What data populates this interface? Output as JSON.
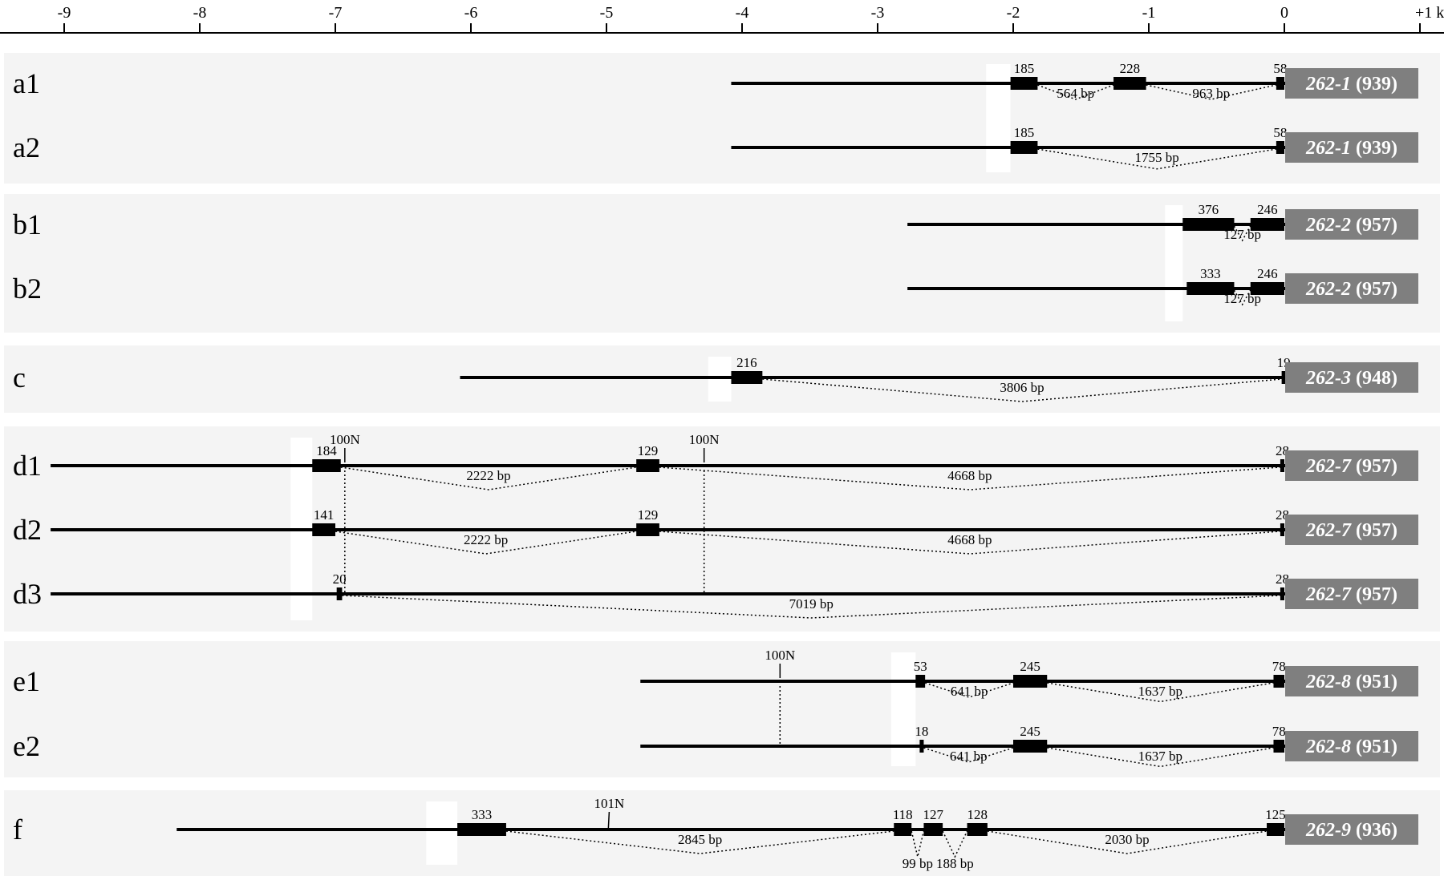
{
  "axis": {
    "ticks": [
      {
        "value": -9,
        "label": "-9"
      },
      {
        "value": -8,
        "label": "-8"
      },
      {
        "value": -7,
        "label": "-7"
      },
      {
        "value": -6,
        "label": "-6"
      },
      {
        "value": -5,
        "label": "-5"
      },
      {
        "value": -4,
        "label": "-4"
      },
      {
        "value": -3,
        "label": "-3"
      },
      {
        "value": -2,
        "label": "-2"
      },
      {
        "value": -1,
        "label": "-1"
      },
      {
        "value": 0,
        "label": "0"
      },
      {
        "value": 1,
        "label": "+1 kb"
      }
    ]
  },
  "colors": {
    "panel_background": "#f4f4f4",
    "gene_box": "#7f7f7f",
    "exon": "#000000",
    "highlight": "#ffffff"
  },
  "panels": [
    {
      "id": "a",
      "highlight": {
        "from": -2.2,
        "to": -2.02
      },
      "rows": [
        {
          "label": "a1",
          "line_start": -4.08,
          "gene": "262-1",
          "length": "(939)",
          "exons": [
            {
              "start": -2.02,
              "end": -1.82,
              "label": "185"
            },
            {
              "start": -1.26,
              "end": -1.02,
              "label": "228"
            },
            {
              "start": -0.06,
              "end": 0,
              "label": "58"
            }
          ],
          "introns": [
            {
              "from": -1.82,
              "to": -1.26,
              "label": "564 bp"
            },
            {
              "from": -1.02,
              "to": -0.06,
              "label": "963 bp"
            }
          ]
        },
        {
          "label": "a2",
          "line_start": -4.08,
          "gene": "262-1",
          "length": "(939)",
          "exons": [
            {
              "start": -2.02,
              "end": -1.82,
              "label": "185"
            },
            {
              "start": -0.06,
              "end": 0,
              "label": "58"
            }
          ],
          "introns": [
            {
              "from": -1.82,
              "to": -0.06,
              "label": "1755 bp"
            }
          ]
        }
      ]
    },
    {
      "id": "b",
      "highlight": {
        "from": -0.88,
        "to": -0.75
      },
      "rows": [
        {
          "label": "b1",
          "line_start": -2.78,
          "gene": "262-2",
          "length": "(957)",
          "exons": [
            {
              "start": -0.75,
              "end": -0.37,
              "label": "376"
            },
            {
              "start": -0.25,
              "end": 0,
              "label": "246"
            }
          ],
          "introns": [
            {
              "from": -0.37,
              "to": -0.25,
              "label": "127 bp"
            }
          ]
        },
        {
          "label": "b2",
          "line_start": -2.78,
          "gene": "262-2",
          "length": "(957)",
          "exons": [
            {
              "start": -0.72,
              "end": -0.37,
              "label": "333"
            },
            {
              "start": -0.25,
              "end": 0,
              "label": "246"
            }
          ],
          "introns": [
            {
              "from": -0.37,
              "to": -0.25,
              "label": "127 bp"
            }
          ]
        }
      ]
    },
    {
      "id": "c",
      "highlight": {
        "from": -4.25,
        "to": -4.08
      },
      "rows": [
        {
          "label": "c",
          "line_start": -6.08,
          "gene": "262-3",
          "length": "(948)",
          "exons": [
            {
              "start": -4.08,
              "end": -3.85,
              "label": "216"
            },
            {
              "start": -0.02,
              "end": 0,
              "label": "19"
            }
          ],
          "introns": [
            {
              "from": -3.85,
              "to": -0.02,
              "label": "3806 bp"
            }
          ]
        }
      ]
    },
    {
      "id": "d",
      "highlight": {
        "from": -7.33,
        "to": -7.17
      },
      "markers": [
        {
          "pos": -6.93,
          "label": "100N",
          "from_row": 0,
          "to_row": 2
        },
        {
          "pos": -4.28,
          "label": "100N",
          "from_row": 0,
          "to_row": 2
        }
      ],
      "rows": [
        {
          "label": "d1",
          "line_start": -9.1,
          "gene": "262-7",
          "length": "(957)",
          "exons": [
            {
              "start": -7.17,
              "end": -6.96,
              "label": "184"
            },
            {
              "start": -4.78,
              "end": -4.61,
              "label": "129"
            },
            {
              "start": -0.03,
              "end": 0,
              "label": "28"
            }
          ],
          "introns": [
            {
              "from": -6.96,
              "to": -4.78,
              "label": "2222 bp"
            },
            {
              "from": -4.61,
              "to": -0.03,
              "label": "4668 bp"
            }
          ]
        },
        {
          "label": "d2",
          "line_start": -9.1,
          "gene": "262-7",
          "length": "(957)",
          "exons": [
            {
              "start": -7.17,
              "end": -7.0,
              "label": "141"
            },
            {
              "start": -4.78,
              "end": -4.61,
              "label": "129"
            },
            {
              "start": -0.03,
              "end": 0,
              "label": "28"
            }
          ],
          "introns": [
            {
              "from": -7.0,
              "to": -4.78,
              "label": "2222 bp"
            },
            {
              "from": -4.61,
              "to": -0.03,
              "label": "4668 bp"
            }
          ]
        },
        {
          "label": "d3",
          "line_start": -9.1,
          "gene": "262-7",
          "length": "(957)",
          "exons": [
            {
              "start": -6.99,
              "end": -6.95,
              "label": "20"
            },
            {
              "start": -0.03,
              "end": 0,
              "label": "28"
            }
          ],
          "introns": [
            {
              "from": -6.95,
              "to": -0.03,
              "label": "7019 bp"
            }
          ]
        }
      ]
    },
    {
      "id": "e",
      "highlight": {
        "from": -2.9,
        "to": -2.72
      },
      "markers": [
        {
          "pos": -3.72,
          "label": "100N",
          "from_row": 0,
          "to_row": 1
        }
      ],
      "rows": [
        {
          "label": "e1",
          "line_start": -4.75,
          "gene": "262-8",
          "length": "(951)",
          "exons": [
            {
              "start": -2.72,
              "end": -2.65,
              "label": "53"
            },
            {
              "start": -2.0,
              "end": -1.75,
              "label": "245"
            },
            {
              "start": -0.08,
              "end": 0,
              "label": "78"
            }
          ],
          "introns": [
            {
              "from": -2.65,
              "to": -2.0,
              "label": "641 bp"
            },
            {
              "from": -1.75,
              "to": -0.08,
              "label": "1637 bp"
            }
          ]
        },
        {
          "label": "e2",
          "line_start": -4.75,
          "gene": "262-8",
          "length": "(951)",
          "exons": [
            {
              "start": -2.69,
              "end": -2.66,
              "label": "18"
            },
            {
              "start": -2.0,
              "end": -1.75,
              "label": "245"
            },
            {
              "start": -0.08,
              "end": 0,
              "label": "78"
            }
          ],
          "introns": [
            {
              "from": -2.66,
              "to": -2.0,
              "label": "641 bp"
            },
            {
              "from": -1.75,
              "to": -0.08,
              "label": "1637 bp"
            }
          ]
        }
      ]
    },
    {
      "id": "f",
      "highlight": {
        "from": -6.33,
        "to": -6.1
      },
      "markers": [
        {
          "pos": -4.98,
          "label": "101N",
          "from_row": 0,
          "to_row": 0,
          "short": true
        }
      ],
      "rows": [
        {
          "label": "f",
          "line_start": -8.17,
          "gene": "262-9",
          "length": "(936)",
          "exons": [
            {
              "start": -6.1,
              "end": -5.74,
              "label": "333"
            },
            {
              "start": -2.88,
              "end": -2.75,
              "label": "118"
            },
            {
              "start": -2.66,
              "end": -2.52,
              "label": "127"
            },
            {
              "start": -2.34,
              "end": -2.19,
              "label": "128"
            },
            {
              "start": -0.13,
              "end": 0,
              "label": "125"
            }
          ],
          "introns": [
            {
              "from": -5.74,
              "to": -2.88,
              "label": "2845 bp"
            },
            {
              "from": -2.75,
              "to": -2.66,
              "label": "99 bp",
              "below": true
            },
            {
              "from": -2.52,
              "to": -2.34,
              "label": "188 bp",
              "below": true
            },
            {
              "from": -2.19,
              "to": -0.13,
              "label": "2030 bp"
            }
          ]
        }
      ]
    }
  ]
}
